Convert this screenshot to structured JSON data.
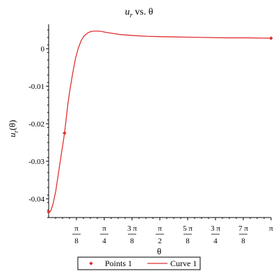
{
  "chart_data": {
    "type": "line",
    "title": {
      "main": "u",
      "sub": "r",
      "rest": " vs. θ"
    },
    "ylabel": {
      "main": "u",
      "sub": "r",
      "rest": "(θ)"
    },
    "xlabel": "θ",
    "xlim": [
      0,
      3.14159
    ],
    "ylim": [
      -0.045,
      0.0065
    ],
    "x_ticks": [
      {
        "value": 0.3927,
        "num": "π",
        "den": "8"
      },
      {
        "value": 0.7854,
        "num": "π",
        "den": "4"
      },
      {
        "value": 1.1781,
        "num": "3 π",
        "den": "8"
      },
      {
        "value": 1.5708,
        "num": "π",
        "den": "2"
      },
      {
        "value": 1.9635,
        "num": "5 π",
        "den": "8"
      },
      {
        "value": 2.3562,
        "num": "3 π",
        "den": "4"
      },
      {
        "value": 2.7489,
        "num": "7 π",
        "den": "8"
      },
      {
        "value": 3.14159,
        "num": "π",
        "den": ""
      }
    ],
    "y_ticks": [
      {
        "value": 0.0,
        "label": "0"
      },
      {
        "value": -0.01,
        "label": "-0.01"
      },
      {
        "value": -0.02,
        "label": "-0.02"
      },
      {
        "value": -0.03,
        "label": "-0.03"
      },
      {
        "value": -0.04,
        "label": "-0.04"
      }
    ],
    "series": [
      {
        "name": "Points 1",
        "kind": "points",
        "color": "#e03030",
        "x": [
          0.0,
          0.2244,
          3.14159
        ],
        "y": [
          -0.0435,
          -0.0225,
          0.0028
        ]
      },
      {
        "name": "Curve 1",
        "kind": "line",
        "color": "#e03030",
        "x": [
          0.0,
          0.03,
          0.06,
          0.1,
          0.14,
          0.18,
          0.2244,
          0.27,
          0.3,
          0.34,
          0.38,
          0.42,
          0.46,
          0.5,
          0.55,
          0.6,
          0.65,
          0.7,
          0.75,
          0.8,
          0.9,
          1.0,
          1.2,
          1.4,
          1.6,
          1.9,
          2.2,
          2.5,
          2.8,
          3.14159
        ],
        "y": [
          -0.0435,
          -0.0432,
          -0.0415,
          -0.038,
          -0.033,
          -0.028,
          -0.0225,
          -0.015,
          -0.011,
          -0.0065,
          -0.0025,
          0.0002,
          0.0022,
          0.0034,
          0.0042,
          0.0046,
          0.0047,
          0.0047,
          0.0046,
          0.0044,
          0.0041,
          0.0038,
          0.0035,
          0.0033,
          0.0032,
          0.0031,
          0.003,
          0.0029,
          0.0029,
          0.0028
        ]
      }
    ],
    "legend": {
      "placement": "bottom",
      "items": [
        "Points 1",
        "Curve 1"
      ]
    },
    "grid": false
  }
}
